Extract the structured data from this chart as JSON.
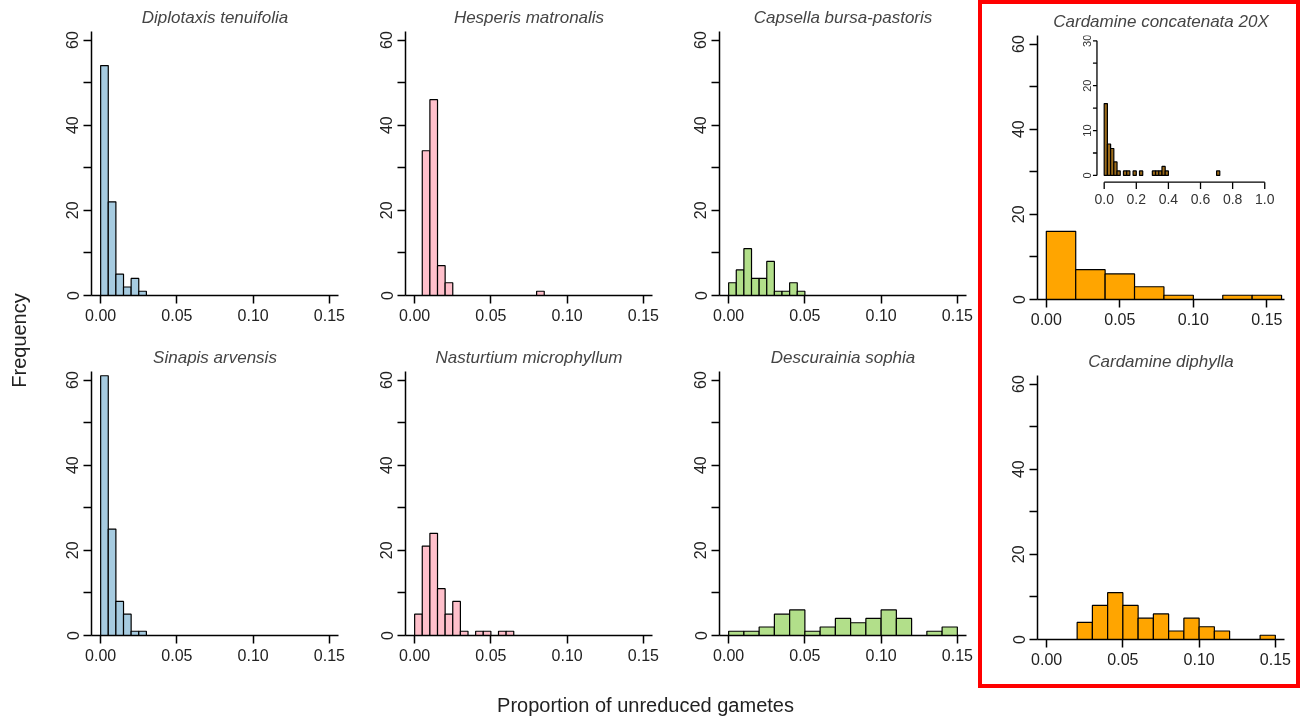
{
  "chart_data": [
    {
      "type": "histogram",
      "title": "Diplotaxis tenuifolia",
      "color": "#a6cbe0",
      "bins": [
        0,
        0.005,
        0.01,
        0.015,
        0.02,
        0.025,
        0.03
      ],
      "values": [
        54,
        22,
        5,
        2,
        4,
        1
      ],
      "xlim": [
        -0.006,
        0.156
      ],
      "ylim": [
        0,
        62
      ],
      "xticks": [
        {
          "value": 0,
          "label": "0.00"
        },
        0.05,
        {
          "value": 0.1,
          "label": "0.10"
        },
        0.15
      ],
      "yticks": [
        0,
        {
          "value": 10,
          "label": null
        },
        20,
        {
          "value": 30,
          "label": null
        },
        40,
        {
          "value": 50,
          "label": null
        },
        60
      ]
    },
    {
      "type": "histogram",
      "title": "Hesperis matronalis",
      "color": "#ffc0cb",
      "bins": [
        0.005,
        0.01,
        0.015,
        0.02,
        0.025,
        0.03,
        0.035,
        0.04,
        0.045,
        0.05,
        0.055,
        0.06,
        0.065,
        0.07,
        0.075,
        0.08,
        0.085
      ],
      "values": [
        34,
        46,
        7,
        3,
        0,
        0,
        0,
        0,
        0,
        0,
        0,
        0,
        0,
        0,
        0,
        1
      ],
      "xlim": [
        -0.006,
        0.156
      ],
      "ylim": [
        0,
        62
      ],
      "xticks": [
        {
          "value": 0,
          "label": "0.00"
        },
        0.05,
        {
          "value": 0.1,
          "label": "0.10"
        },
        0.15
      ],
      "yticks": [
        0,
        {
          "value": 10,
          "label": null
        },
        20,
        {
          "value": 30,
          "label": null
        },
        40,
        {
          "value": 50,
          "label": null
        },
        60
      ]
    },
    {
      "type": "histogram",
      "title": "Capsella bursa-pastoris",
      "color": "#b2df8a",
      "bins": [
        0,
        0.005,
        0.01,
        0.015,
        0.02,
        0.025,
        0.03,
        0.035,
        0.04,
        0.045,
        0.05
      ],
      "values": [
        3,
        6,
        11,
        4,
        4,
        8,
        1,
        1,
        3,
        1
      ],
      "xlim": [
        -0.006,
        0.156
      ],
      "ylim": [
        0,
        62
      ],
      "xticks": [
        {
          "value": 0,
          "label": "0.00"
        },
        0.05,
        {
          "value": 0.1,
          "label": "0.10"
        },
        0.15
      ],
      "yticks": [
        0,
        {
          "value": 10,
          "label": null
        },
        20,
        {
          "value": 30,
          "label": null
        },
        40,
        {
          "value": 50,
          "label": null
        },
        60
      ]
    },
    {
      "type": "histogram",
      "title": "Cardamine concatenata 20X",
      "color": "#ffa500",
      "bins": [
        0,
        0.02,
        0.04,
        0.06,
        0.08,
        0.1,
        0.12,
        0.14,
        0.16
      ],
      "values": [
        16,
        7,
        6,
        3,
        1,
        0,
        1,
        1
      ],
      "xlim": [
        -0.006,
        0.162
      ],
      "ylim": [
        0,
        62
      ],
      "xticks": [
        {
          "value": 0,
          "label": "0.00"
        },
        0.05,
        {
          "value": 0.1,
          "label": "0.10"
        },
        0.15
      ],
      "yticks": [
        0,
        {
          "value": 10,
          "label": null
        },
        20,
        {
          "value": 30,
          "label": null
        },
        40,
        {
          "value": 50,
          "label": null
        },
        60
      ]
    },
    {
      "type": "histogram",
      "title": "Sinapis arvensis",
      "color": "#a6cbe0",
      "bins": [
        0,
        0.005,
        0.01,
        0.015,
        0.02,
        0.025,
        0.03
      ],
      "values": [
        61,
        25,
        8,
        5,
        1,
        1
      ],
      "xlim": [
        -0.006,
        0.156
      ],
      "ylim": [
        0,
        62
      ],
      "xticks": [
        {
          "value": 0,
          "label": "0.00"
        },
        0.05,
        {
          "value": 0.1,
          "label": "0.10"
        },
        0.15
      ],
      "yticks": [
        0,
        {
          "value": 10,
          "label": null
        },
        20,
        {
          "value": 30,
          "label": null
        },
        40,
        {
          "value": 50,
          "label": null
        },
        60
      ]
    },
    {
      "type": "histogram",
      "title": "Nasturtium microphyllum",
      "color": "#ffc0cb",
      "bins": [
        0,
        0.005,
        0.01,
        0.015,
        0.02,
        0.025,
        0.03,
        0.035,
        0.04,
        0.045,
        0.05,
        0.055,
        0.06,
        0.065
      ],
      "values": [
        5,
        21,
        24,
        11,
        5,
        8,
        1,
        0,
        1,
        1,
        0,
        1,
        1
      ],
      "xlim": [
        -0.006,
        0.156
      ],
      "ylim": [
        0,
        62
      ],
      "xticks": [
        {
          "value": 0,
          "label": "0.00"
        },
        0.05,
        {
          "value": 0.1,
          "label": "0.10"
        },
        0.15
      ],
      "yticks": [
        0,
        {
          "value": 10,
          "label": null
        },
        20,
        {
          "value": 30,
          "label": null
        },
        40,
        {
          "value": 50,
          "label": null
        },
        60
      ]
    },
    {
      "type": "histogram",
      "title": "Descurainia sophia",
      "color": "#b2df8a",
      "bins": [
        0,
        0.01,
        0.02,
        0.03,
        0.04,
        0.05,
        0.06,
        0.07,
        0.08,
        0.09,
        0.1,
        0.11,
        0.12,
        0.13,
        0.14,
        0.15
      ],
      "values": [
        1,
        1,
        2,
        5,
        6,
        1,
        2,
        4,
        3,
        4,
        6,
        4,
        0,
        1,
        2
      ],
      "xlim": [
        -0.006,
        0.156
      ],
      "ylim": [
        0,
        62
      ],
      "xticks": [
        {
          "value": 0,
          "label": "0.00"
        },
        0.05,
        {
          "value": 0.1,
          "label": "0.10"
        },
        0.15
      ],
      "yticks": [
        0,
        {
          "value": 10,
          "label": null
        },
        20,
        {
          "value": 30,
          "label": null
        },
        40,
        {
          "value": 50,
          "label": null
        },
        60
      ]
    },
    {
      "type": "histogram",
      "title": "Cardamine diphylla",
      "color": "#ffa500",
      "bins": [
        0.02,
        0.03,
        0.04,
        0.05,
        0.06,
        0.07,
        0.08,
        0.09,
        0.1,
        0.11,
        0.12,
        0.13,
        0.14,
        0.15
      ],
      "values": [
        4,
        8,
        11,
        8,
        5,
        6,
        2,
        5,
        3,
        2,
        0,
        0,
        1
      ],
      "xlim": [
        -0.006,
        0.156
      ],
      "ylim": [
        0,
        62
      ],
      "xticks": [
        {
          "value": 0,
          "label": "0.00"
        },
        0.05,
        {
          "value": 0.1,
          "label": "0.10"
        },
        0.15
      ],
      "yticks": [
        0,
        {
          "value": 10,
          "label": null
        },
        20,
        {
          "value": 30,
          "label": null
        },
        40,
        {
          "value": 50,
          "label": null
        },
        60
      ]
    },
    {
      "type": "histogram",
      "color": "#9a6a1a",
      "bins": [
        0,
        0.02,
        0.04,
        0.06,
        0.08,
        0.1,
        0.12,
        0.14,
        0.16,
        0.18,
        0.2,
        0.22,
        0.24,
        0.26,
        0.28,
        0.3,
        0.32,
        0.34,
        0.36,
        0.38,
        0.4,
        0.42,
        0.44,
        0.46,
        0.48,
        0.5,
        0.52,
        0.54,
        0.56,
        0.58,
        0.6,
        0.62,
        0.64,
        0.66,
        0.68,
        0.7,
        0.72
      ],
      "values": [
        16,
        7,
        6,
        3,
        1,
        0,
        1,
        1,
        0,
        1,
        0,
        1,
        0,
        0,
        0,
        1,
        1,
        1,
        2,
        1,
        0,
        0,
        0,
        0,
        0,
        0,
        0,
        0,
        0,
        0,
        0,
        0,
        0,
        0,
        0,
        1
      ],
      "xlim": [
        0,
        1
      ],
      "ylim": [
        0,
        30
      ],
      "xticks": [
        {
          "value": 0,
          "label": "0.0"
        },
        0.2,
        0.4,
        0.6,
        0.8,
        {
          "value": 1,
          "label": "1.0"
        }
      ],
      "yticks": [
        0,
        {
          "value": 5,
          "label": null
        },
        10,
        {
          "value": 15,
          "label": null
        },
        20,
        {
          "value": 25,
          "label": null
        },
        30
      ]
    },
    {
      "type": "other",
      "xlabel": "Proportion of unreduced gametes",
      "ylabel": "Frequency"
    }
  ]
}
